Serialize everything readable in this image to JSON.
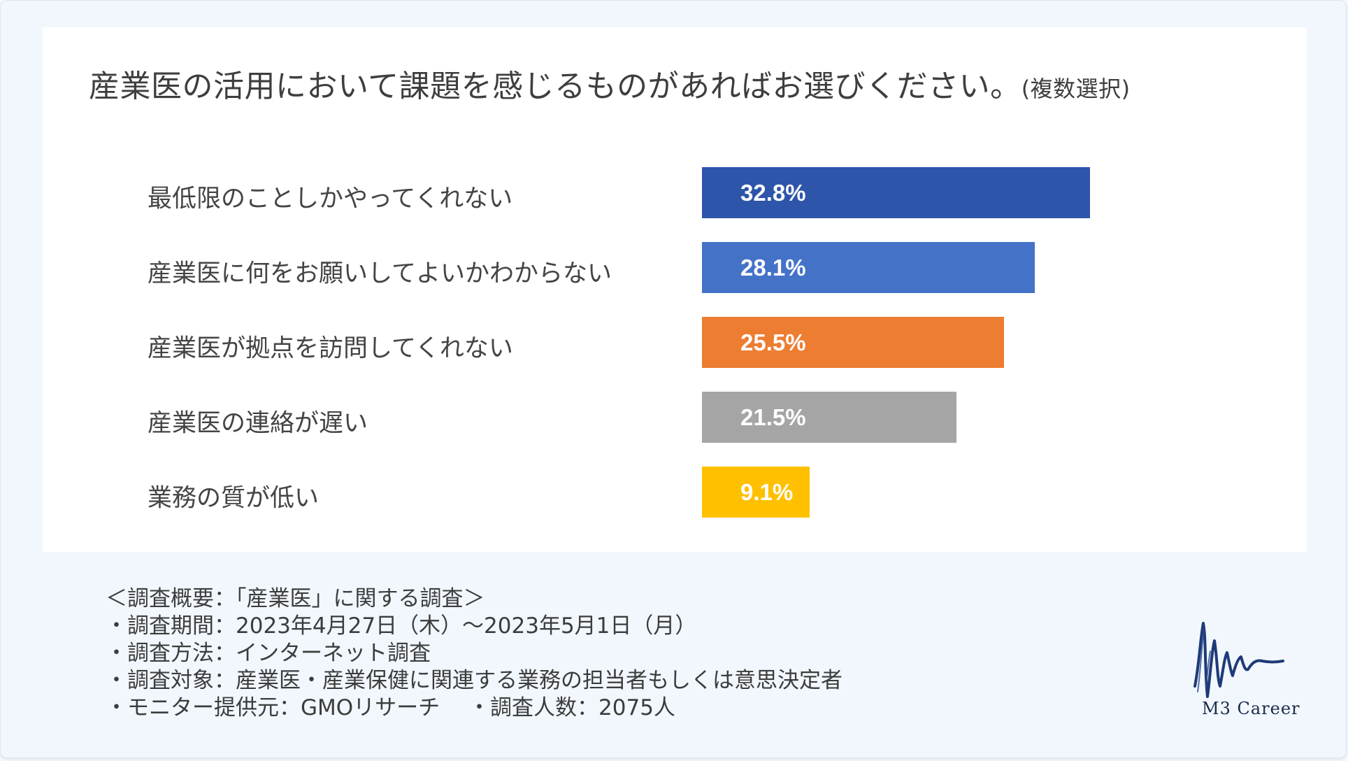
{
  "title": "産業医の活用において課題を感じるものがあればお選びください。",
  "title_sub": "(複数選択)",
  "chart_data": {
    "type": "bar",
    "orientation": "horizontal",
    "categories": [
      "最低限のことしかやってくれない",
      "産業医に何をお願いしてよいかわからない",
      "産業医が拠点を訪問してくれない",
      "産業医の連絡が遅い",
      "業務の質が低い"
    ],
    "values": [
      32.8,
      28.1,
      25.5,
      21.5,
      9.1
    ],
    "value_labels": [
      "32.8%",
      "28.1%",
      "25.5%",
      "21.5%",
      "9.1%"
    ],
    "colors": [
      "#2d55a9",
      "#4472c7",
      "#ed7d31",
      "#a5a5a5",
      "#ffc000"
    ],
    "xlim": [
      0,
      40
    ],
    "grid": false
  },
  "notes": [
    "＜調査概要：「産業医」に関する調査＞",
    "・調査期間：2023年4月27日（木）～2023年5月1日（月）",
    "・調査方法：インターネット調査",
    "・調査対象：産業医・産業保健に関連する業務の担当者もしくは意思決定者",
    "・モニター提供元：GMOリサーチ　 ・調査人数：2075人"
  ],
  "logo": {
    "text": "M3 Career",
    "icon": "m3-signature-wave-logo",
    "color": "#1f3a78"
  }
}
